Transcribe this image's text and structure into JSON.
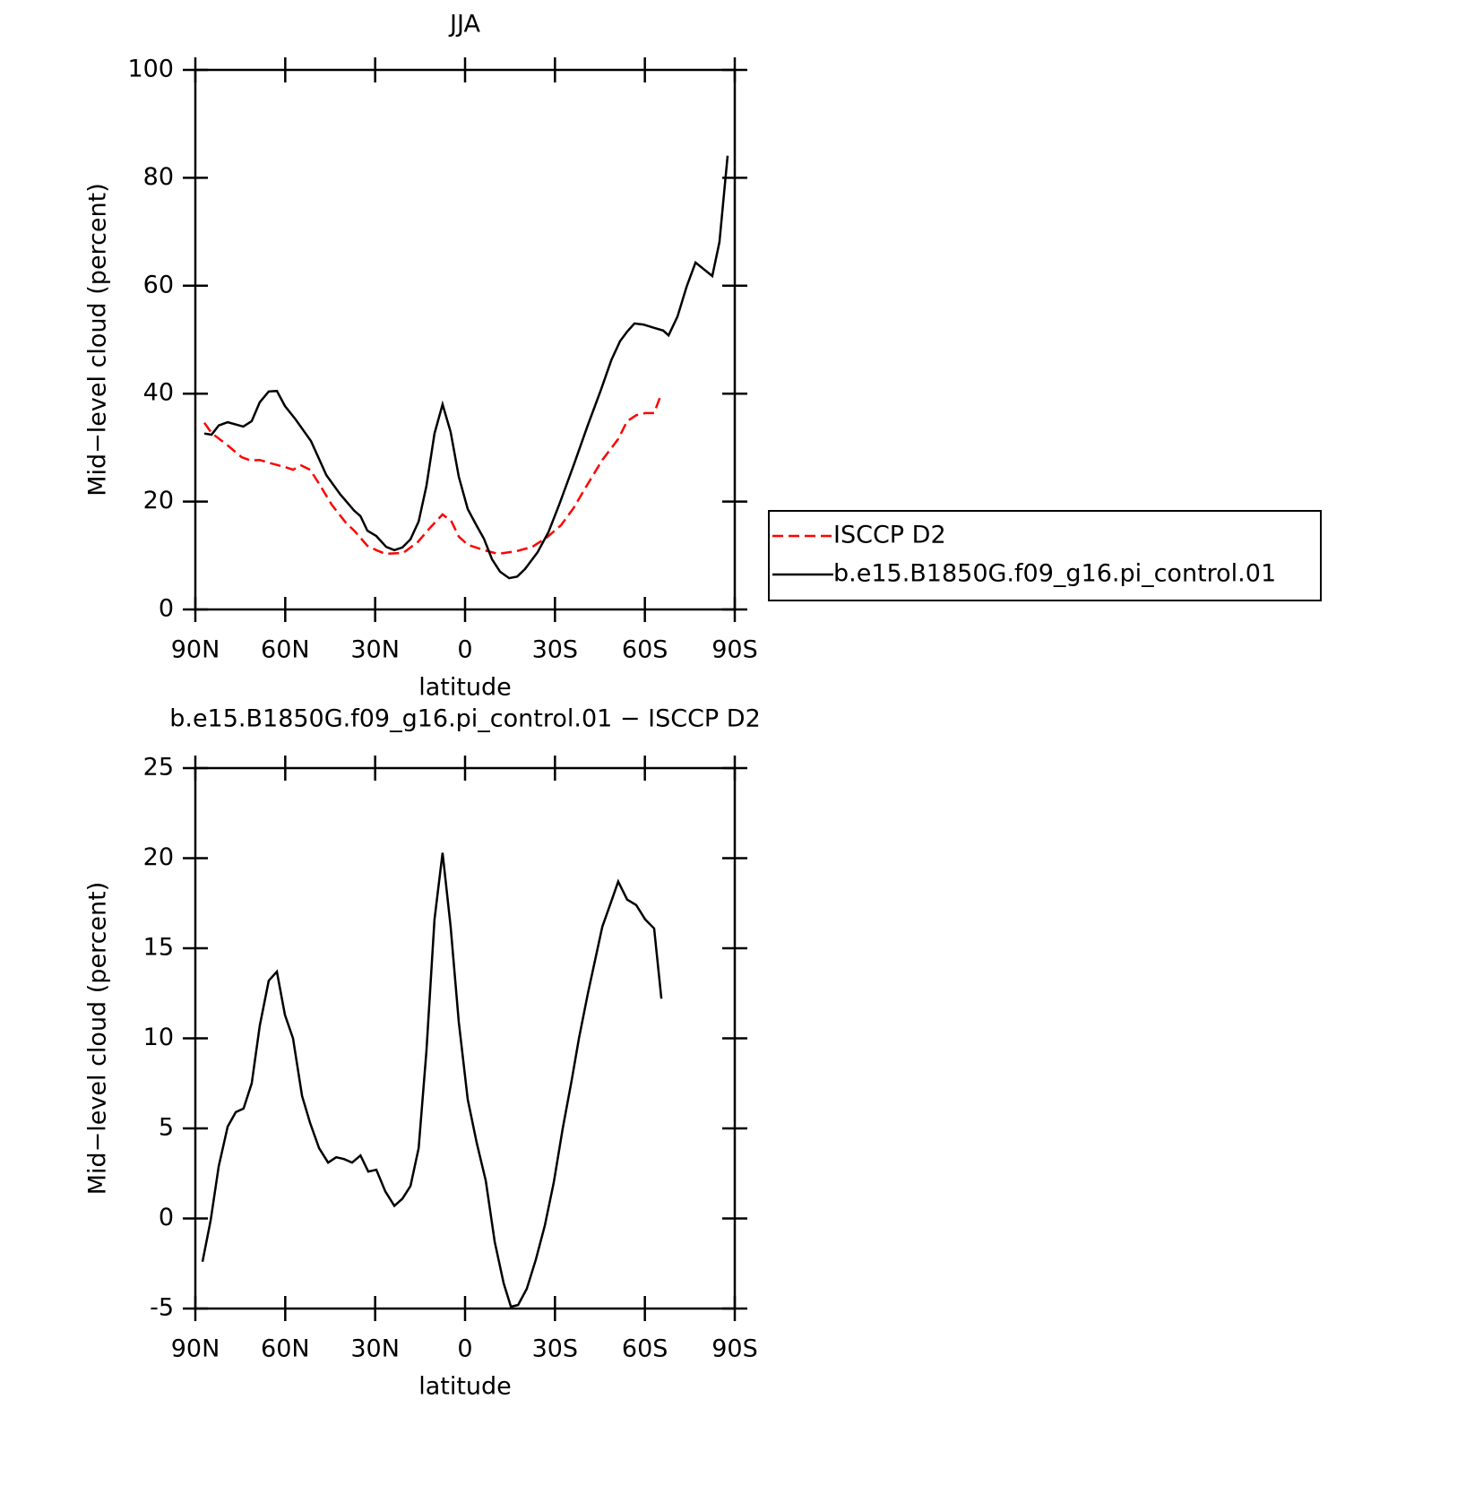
{
  "chart_data": [
    {
      "type": "line",
      "title": "JJA",
      "xlabel": "latitude",
      "ylabel": "Mid−level cloud (percent)",
      "xlim": [
        90,
        -90
      ],
      "xticks": [
        {
          "value": 90,
          "label": "90N"
        },
        {
          "value": 60,
          "label": "60N"
        },
        {
          "value": 30,
          "label": "30N"
        },
        0,
        {
          "value": -30,
          "label": "30S"
        },
        {
          "value": -60,
          "label": "60S"
        },
        {
          "value": -90,
          "label": "90S"
        }
      ],
      "ylim": [
        0,
        100
      ],
      "yticks": [
        0,
        20,
        40,
        60,
        80,
        100
      ],
      "legend": "outside right",
      "series": [
        {
          "name": "ISCCP D2",
          "color": "#ff0000",
          "linestyle": "dashed",
          "x": [
            87,
            84.6,
            79.2,
            74.5,
            71.5,
            68.5,
            65.5,
            60.1,
            57.4,
            54.7,
            51.7,
            48.7,
            44.5,
            39.8,
            36.8,
            32.6,
            29.6,
            26.6,
            20.6,
            15.8,
            11.9,
            7.5,
            4.5,
            2.1,
            -0.9,
            -6.3,
            -11.1,
            -17.1,
            -22.4,
            -27.2,
            -32,
            -36.2,
            -41,
            -45.8,
            -51.1,
            -54.1,
            -57.1,
            -60.1,
            -63.1,
            -65.5
          ],
          "values": [
            34.6,
            32.7,
            30.4,
            28.2,
            27.6,
            27.7,
            27.2,
            26.4,
            25.9,
            26.7,
            25.9,
            23.3,
            19.4,
            16.1,
            14.5,
            11.8,
            11.0,
            10.3,
            10.5,
            12.5,
            15.0,
            17.6,
            16.3,
            13.5,
            12.0,
            11.0,
            10.3,
            10.8,
            11.6,
            13.3,
            15.6,
            18.8,
            23.3,
            27.7,
            31.6,
            34.9,
            36.0,
            36.4,
            36.4,
            40.0
          ]
        },
        {
          "name": "b.e15.B1850G.f09_g16.pi_control.01",
          "color": "#000000",
          "linestyle": "solid",
          "x": [
            87,
            84.6,
            82.2,
            79.2,
            74,
            71.2,
            68.5,
            65.5,
            62.8,
            60.1,
            56.5,
            51.4,
            46.3,
            41.6,
            37,
            34.9,
            32.6,
            29.6,
            26.3,
            23.6,
            20.9,
            18.2,
            15.5,
            12.9,
            10.2,
            7.5,
            4.8,
            2.1,
            -0.9,
            -3.6,
            -6.3,
            -9,
            -11.7,
            -14.7,
            -17.4,
            -20,
            -24.2,
            -27.8,
            -31.4,
            -36.2,
            -41,
            -45.2,
            -48.8,
            -51.7,
            -54.1,
            -56.5,
            -59.5,
            -63.1,
            -66.1,
            -67.9,
            -70.9,
            -73.9,
            -76.9,
            -82.5,
            -84.9,
            -87.6
          ],
          "values": [
            32.6,
            32.4,
            34.1,
            34.7,
            33.9,
            34.9,
            38.4,
            40.4,
            40.5,
            37.7,
            35.2,
            31.2,
            24.9,
            21.3,
            18.3,
            17.3,
            14.6,
            13.6,
            11.6,
            11.0,
            11.5,
            13.0,
            16.3,
            22.9,
            32.6,
            38.0,
            32.9,
            24.6,
            18.6,
            15.8,
            13.1,
            9.3,
            7.0,
            5.8,
            6.1,
            7.5,
            10.6,
            14.3,
            19.4,
            26.7,
            34.2,
            40.5,
            46.2,
            49.7,
            51.5,
            53.0,
            52.8,
            52.2,
            51.7,
            50.8,
            54.3,
            59.8,
            64.3,
            61.8,
            68.1,
            84.1
          ]
        }
      ]
    },
    {
      "type": "line",
      "title": "b.e15.B1850G.f09_g16.pi_control.01 − ISCCP D2",
      "xlabel": "latitude",
      "ylabel": "Mid−level cloud (percent)",
      "xlim": [
        90,
        -90
      ],
      "xticks": [
        {
          "value": 90,
          "label": "90N"
        },
        {
          "value": 60,
          "label": "60N"
        },
        {
          "value": 30,
          "label": "30N"
        },
        0,
        {
          "value": -30,
          "label": "30S"
        },
        {
          "value": -60,
          "label": "60S"
        },
        {
          "value": -90,
          "label": "90S"
        }
      ],
      "ylim": [
        -5,
        25
      ],
      "yticks": [
        -5,
        0,
        5,
        10,
        15,
        20,
        25
      ],
      "series": [
        {
          "color": "#000000",
          "linestyle": "solid",
          "x": [
            87.6,
            84.9,
            82.2,
            79.2,
            76.5,
            73.9,
            71.2,
            68.5,
            65.5,
            62.8,
            60.1,
            57.4,
            54.4,
            51.7,
            48.7,
            45.7,
            43,
            40.4,
            37.7,
            34.9,
            32.3,
            29.6,
            26.6,
            23.6,
            20.9,
            18.2,
            15.5,
            12.9,
            10.2,
            7.5,
            4.8,
            2.1,
            -0.9,
            -3.9,
            -6.9,
            -9.9,
            -12.9,
            -15.3,
            -17.7,
            -20.6,
            -23.6,
            -26.6,
            -29.6,
            -32.6,
            -35.6,
            -38,
            -41,
            -45.8,
            -48.8,
            -51.1,
            -54.1,
            -57.1,
            -60.1,
            -63.1,
            -65.5
          ],
          "values": [
            -2.4,
            -0.1,
            2.9,
            5.1,
            5.9,
            6.1,
            7.5,
            10.7,
            13.2,
            13.7,
            11.3,
            10.0,
            6.8,
            5.3,
            3.9,
            3.1,
            3.4,
            3.3,
            3.1,
            3.5,
            2.6,
            2.7,
            1.5,
            0.7,
            1.1,
            1.8,
            3.9,
            9.3,
            16.6,
            20.3,
            16.2,
            10.9,
            6.6,
            4.2,
            2.1,
            -1.3,
            -3.6,
            -4.9,
            -4.8,
            -3.9,
            -2.3,
            -0.4,
            2.0,
            5.0,
            7.7,
            10.0,
            12.5,
            16.2,
            17.6,
            18.7,
            17.7,
            17.4,
            16.6,
            16.1,
            12.2
          ]
        }
      ]
    }
  ]
}
